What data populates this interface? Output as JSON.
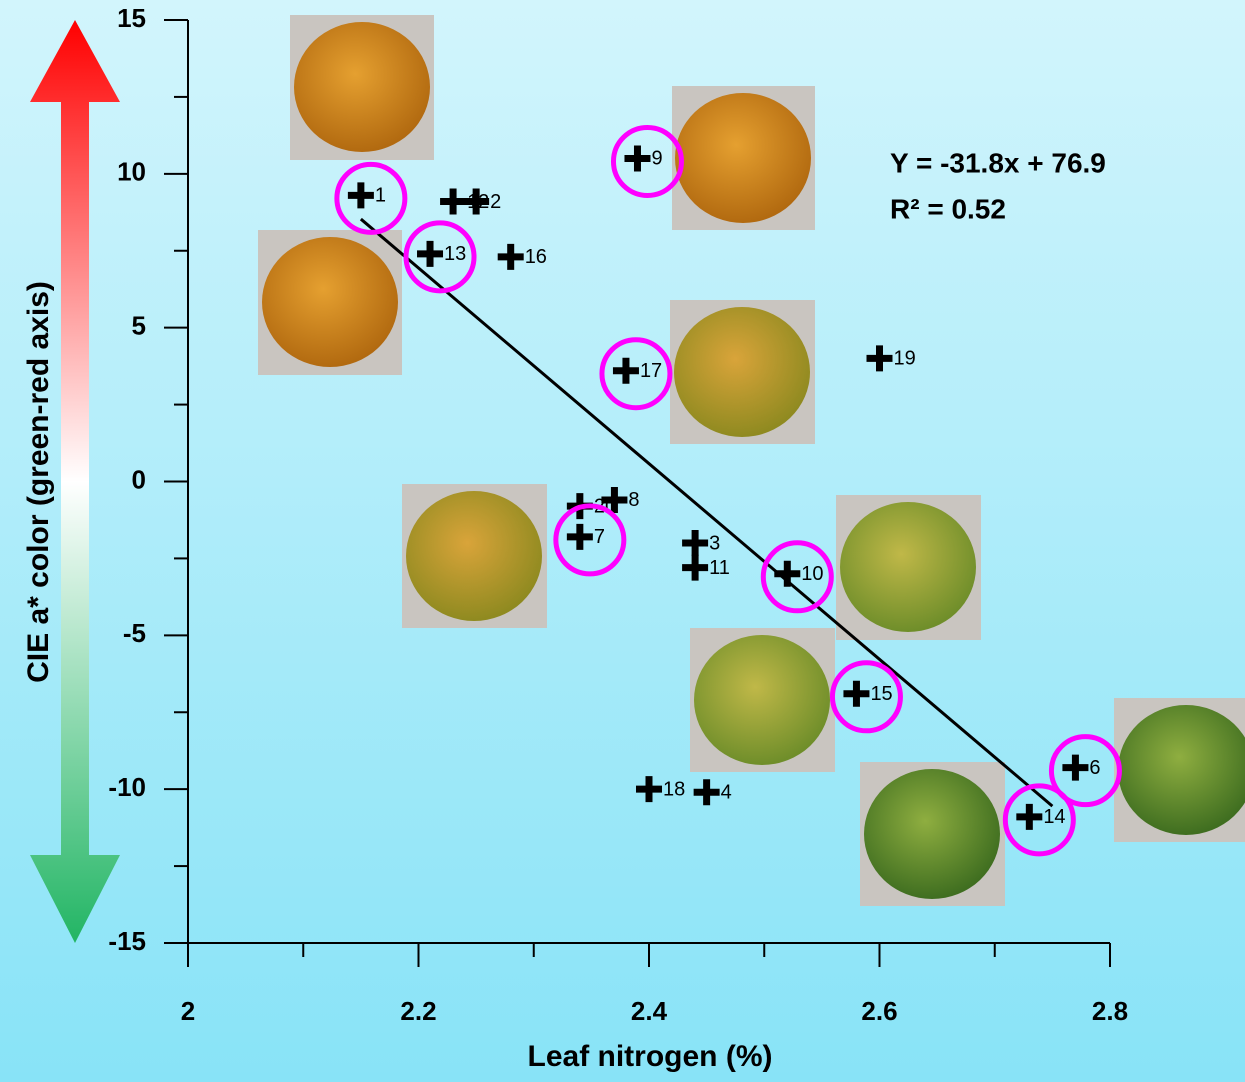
{
  "chart_data": {
    "type": "scatter",
    "xlabel": "Leaf nitrogen (%)",
    "ylabel": "CIE a* color (green-red axis)",
    "xlim": [
      2,
      2.8
    ],
    "ylim": [
      -15,
      15
    ],
    "xticks": [
      2,
      2.2,
      2.4,
      2.6,
      2.8
    ],
    "xminor": [
      2.1,
      2.3,
      2.5,
      2.7
    ],
    "yticks": [
      -15,
      -10,
      -5,
      0,
      5,
      10,
      15
    ],
    "yminor": [
      -12.5,
      -7.5,
      -2.5,
      2.5,
      7.5,
      12.5
    ],
    "series": [
      {
        "color": "#000000",
        "x": [
          2.15,
          2.23,
          2.25,
          2.21,
          2.28,
          2.39,
          2.38,
          2.6,
          2.34,
          2.37,
          2.34,
          2.44,
          2.44,
          2.52,
          2.58,
          2.4,
          2.45,
          2.77,
          2.73
        ],
        "values": [
          9.3,
          9.1,
          9.1,
          7.4,
          7.3,
          10.5,
          3.6,
          4.0,
          -0.8,
          -0.6,
          -1.8,
          -2.0,
          -2.8,
          -3.0,
          -6.9,
          -10.0,
          -10.1,
          -9.3,
          -10.9
        ],
        "labels": [
          "1",
          "12",
          "2",
          "13",
          "16",
          "9",
          "17",
          "19",
          "20",
          "8",
          "7",
          "3",
          "11",
          "10",
          "15",
          "18",
          "4",
          "6",
          "14"
        ],
        "circled": [
          true,
          false,
          false,
          true,
          false,
          true,
          true,
          false,
          false,
          false,
          true,
          false,
          false,
          true,
          true,
          false,
          false,
          true,
          true
        ]
      }
    ],
    "circle_color": "#ff00ff",
    "fit": {
      "slope": -31.8,
      "intercept": 76.9,
      "xrange": [
        2.15,
        2.75
      ],
      "color": "#000000"
    },
    "annotations": [
      "Y = -31.8x + 76.9",
      "R² = 0.52"
    ]
  }
}
